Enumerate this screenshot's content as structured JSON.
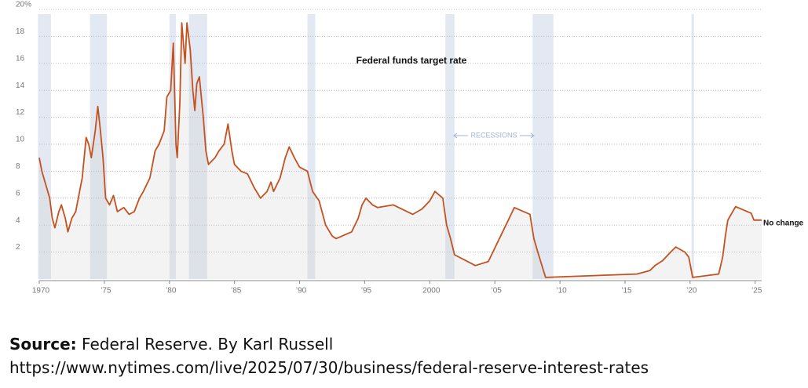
{
  "chart_data": {
    "type": "line",
    "annotation": "Federal funds target rate",
    "end_label": "No change",
    "recession_label": "RECESSIONS",
    "recessions": [
      [
        1969.9,
        1970.9
      ],
      [
        1973.9,
        1975.2
      ],
      [
        1980.0,
        1980.5
      ],
      [
        1981.5,
        1982.9
      ],
      [
        1990.6,
        1991.2
      ],
      [
        2001.2,
        2001.9
      ],
      [
        2007.9,
        2009.5
      ],
      [
        2020.1,
        2020.3
      ]
    ],
    "xlim": [
      1970,
      2025.5
    ],
    "xticks": [
      {
        "value": 1970,
        "label": "1970"
      },
      {
        "value": 1975,
        "label": "’75"
      },
      {
        "value": 1980,
        "label": "’80"
      },
      {
        "value": 1985,
        "label": "’85"
      },
      {
        "value": 1990,
        "label": "’90"
      },
      {
        "value": 1995,
        "label": "’95"
      },
      {
        "value": 2000,
        "label": "2000"
      },
      {
        "value": 2005,
        "label": "’05"
      },
      {
        "value": 2010,
        "label": "’10"
      },
      {
        "value": 2015,
        "label": "’15"
      },
      {
        "value": 2020,
        "label": "’20"
      },
      {
        "value": 2025,
        "label": "’25"
      }
    ],
    "ylim": [
      0,
      20
    ],
    "yticks": [
      2,
      4,
      6,
      8,
      10,
      12,
      14,
      16,
      18,
      {
        "value": 20,
        "label": "20%"
      }
    ],
    "grid": true,
    "series": [
      {
        "name": "Federal funds target rate",
        "color": "#c4511f",
        "x": [
          1970,
          1970.2,
          1970.5,
          1970.8,
          1971.0,
          1971.2,
          1971.5,
          1971.7,
          1972.0,
          1972.2,
          1972.5,
          1972.8,
          1973.0,
          1973.3,
          1973.6,
          1973.8,
          1974.0,
          1974.3,
          1974.5,
          1974.7,
          1974.9,
          1975.1,
          1975.4,
          1975.7,
          1976.0,
          1976.5,
          1976.9,
          1977.3,
          1977.7,
          1978.0,
          1978.5,
          1978.9,
          1979.2,
          1979.6,
          1979.8,
          1980.1,
          1980.3,
          1980.5,
          1980.6,
          1980.8,
          1980.95,
          1981.2,
          1981.35,
          1981.6,
          1981.8,
          1981.95,
          1982.1,
          1982.3,
          1982.6,
          1982.8,
          1983.0,
          1983.5,
          1983.8,
          1984.2,
          1984.5,
          1984.8,
          1985.0,
          1985.5,
          1986.0,
          1986.5,
          1987.0,
          1987.5,
          1987.8,
          1988.0,
          1988.5,
          1988.9,
          1989.2,
          1989.6,
          1990.0,
          1990.6,
          1991.0,
          1991.5,
          1992.0,
          1992.5,
          1992.8,
          1994.0,
          1994.5,
          1994.8,
          1995.1,
          1995.6,
          1996.0,
          1997.2,
          1998.7,
          1999.4,
          2000.0,
          2000.4,
          2001.0,
          2001.3,
          2001.6,
          2001.9,
          2002.9,
          2003.5,
          2004.5,
          2005.0,
          2005.5,
          2006.0,
          2006.5,
          2007.7,
          2008.0,
          2008.3,
          2008.9,
          2015.9,
          2016.9,
          2017.3,
          2017.9,
          2018.5,
          2018.9,
          2019.6,
          2019.9,
          2020.2,
          2022.2,
          2022.5,
          2022.7,
          2022.9,
          2023.5,
          2024.7,
          2024.9,
          2025.5
        ],
        "values": [
          9.0,
          8.0,
          7.0,
          6.0,
          4.5,
          3.8,
          5.0,
          5.5,
          4.5,
          3.5,
          4.5,
          5.0,
          6.0,
          7.5,
          10.5,
          10.0,
          9.0,
          11.0,
          12.8,
          11.0,
          9.0,
          6.0,
          5.5,
          6.2,
          5.0,
          5.3,
          4.8,
          5.0,
          6.0,
          6.5,
          7.5,
          9.5,
          10.0,
          11.0,
          13.5,
          14.0,
          17.5,
          10.0,
          9.0,
          13.0,
          19.0,
          16.0,
          19.0,
          17.0,
          14.0,
          12.5,
          14.5,
          15.0,
          12.0,
          9.5,
          8.5,
          9.0,
          9.5,
          10.0,
          11.5,
          9.5,
          8.5,
          8.0,
          7.8,
          6.8,
          6.0,
          6.5,
          7.2,
          6.5,
          7.5,
          9.0,
          9.8,
          9.0,
          8.3,
          8.0,
          6.5,
          5.8,
          4.0,
          3.2,
          3.0,
          3.5,
          4.5,
          5.5,
          6.0,
          5.5,
          5.3,
          5.5,
          4.8,
          5.2,
          5.8,
          6.5,
          6.0,
          4.0,
          3.0,
          1.8,
          1.3,
          1.0,
          1.3,
          2.3,
          3.3,
          4.3,
          5.3,
          4.8,
          3.0,
          2.0,
          0.125,
          0.375,
          0.625,
          1.0,
          1.375,
          2.0,
          2.375,
          2.0,
          1.625,
          0.125,
          0.375,
          1.625,
          3.125,
          4.375,
          5.375,
          4.875,
          4.375,
          4.375
        ]
      }
    ]
  },
  "source": {
    "label": "Source:",
    "text": "Federal Reserve. By Karl Russell https://www.nytimes.com/live/2025/07/30/business/federal-reserve-interest-rates"
  }
}
